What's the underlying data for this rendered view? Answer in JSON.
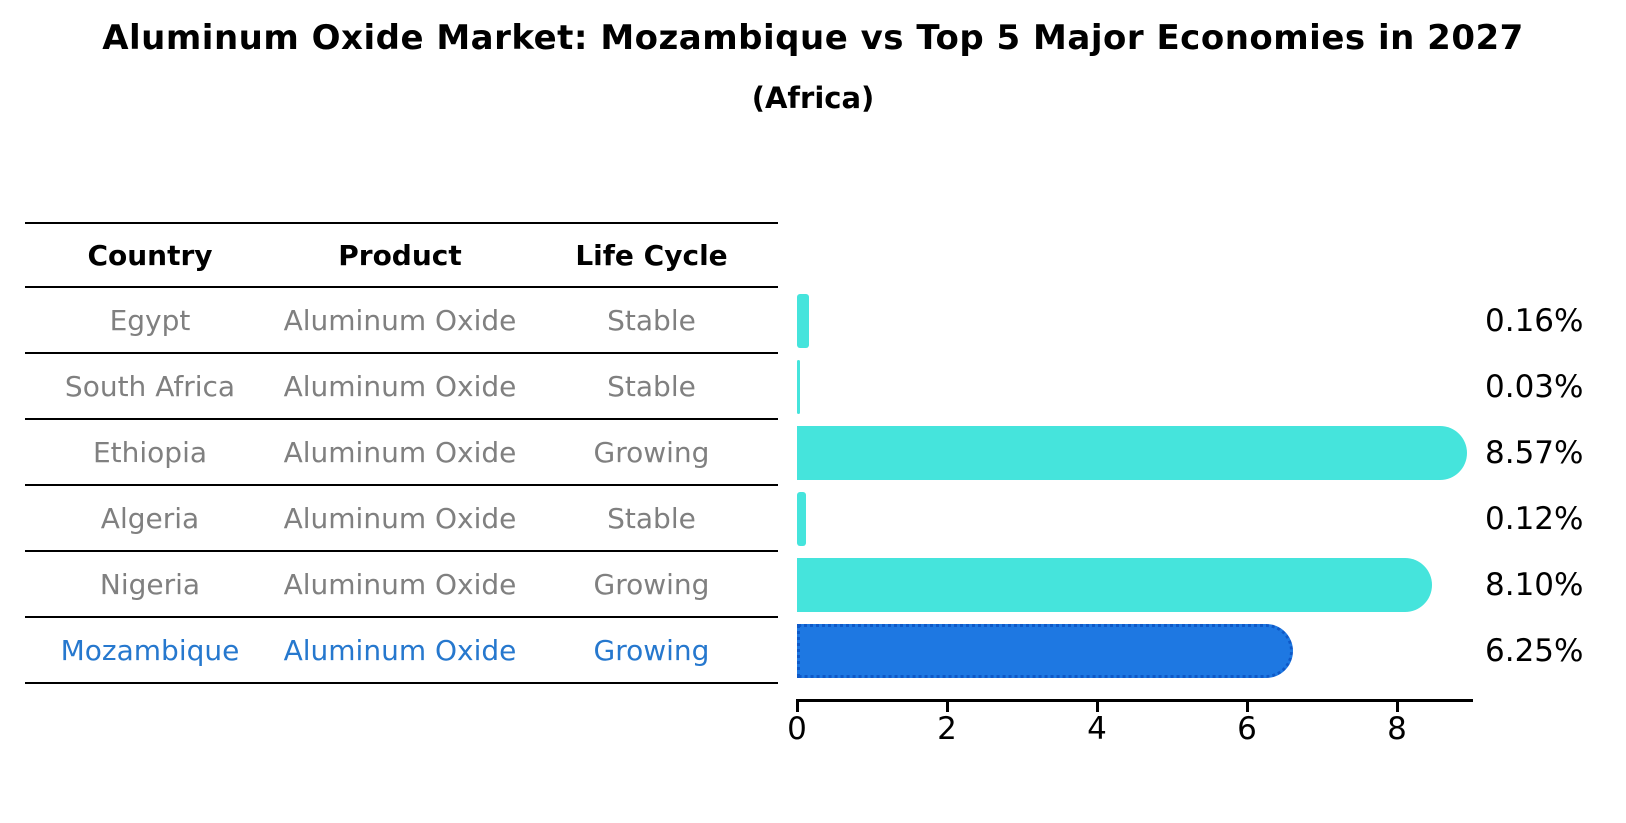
{
  "title": "Aluminum Oxide Market: Mozambique vs Top 5 Major Economies in 2027",
  "subtitle": "(Africa)",
  "table": {
    "headers": {
      "country": "Country",
      "product": "Product",
      "life_cycle": "Life Cycle"
    },
    "rows": [
      {
        "country": "Egypt",
        "product": "Aluminum Oxide",
        "life_cycle": "Stable",
        "highlighted": false
      },
      {
        "country": "South Africa",
        "product": "Aluminum Oxide",
        "life_cycle": "Stable",
        "highlighted": false
      },
      {
        "country": "Ethiopia",
        "product": "Aluminum Oxide",
        "life_cycle": "Growing",
        "highlighted": false
      },
      {
        "country": "Algeria",
        "product": "Aluminum Oxide",
        "life_cycle": "Stable",
        "highlighted": false
      },
      {
        "country": "Nigeria",
        "product": "Aluminum Oxide",
        "life_cycle": "Growing",
        "highlighted": false
      },
      {
        "country": "Mozambique",
        "product": "Aluminum Oxide",
        "life_cycle": "Growing",
        "highlighted": true
      }
    ]
  },
  "chart_data": {
    "type": "bar",
    "orientation": "horizontal",
    "title": "Aluminum Oxide Market: Mozambique vs Top 5 Major Economies in 2027",
    "subtitle": "(Africa)",
    "categories": [
      "Egypt",
      "South Africa",
      "Ethiopia",
      "Algeria",
      "Nigeria",
      "Mozambique"
    ],
    "values": [
      0.16,
      0.03,
      8.57,
      0.12,
      8.1,
      6.25
    ],
    "value_labels": [
      "0.16%",
      "0.03%",
      "8.57%",
      "0.12%",
      "8.10%",
      "6.25%"
    ],
    "xlim": [
      0,
      9
    ],
    "xticks": [
      0,
      2,
      4,
      6,
      8
    ],
    "grid": false,
    "legend_position": "none",
    "highlight_index": 5,
    "value_label_position": "right-outside"
  },
  "colors": {
    "background": "#FFFFFF",
    "bar": "#45E4DC",
    "highlight_bar": "#1E78E2",
    "highlight_border": "#0E59C8",
    "highlight_text": "#2678CE",
    "muted_text": "#808080",
    "heading_text": "#000000",
    "axis": "#000000"
  }
}
